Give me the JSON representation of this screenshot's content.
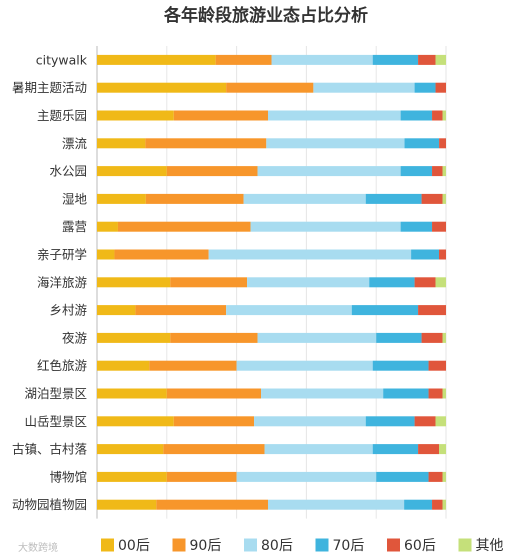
{
  "chart_data": {
    "type": "bar",
    "orientation": "horizontal",
    "stacked": true,
    "normalized": true,
    "title": "各年龄段旅游业态占比分析",
    "categories": [
      "citywalk",
      "暑期主题活动",
      "主题乐园",
      "漂流",
      "水公园",
      "湿地",
      "露营",
      "亲子研学",
      "海洋旅游",
      "乡村游",
      "夜游",
      "红色旅游",
      "湖泊型景区",
      "山岳型景区",
      "古镇、古村落",
      "博物馆",
      "动物园植物园"
    ],
    "series": [
      {
        "name": "00后",
        "color": "#f0b918",
        "values": [
          34,
          37,
          22,
          14,
          20,
          14,
          6,
          5,
          21,
          11,
          21,
          15,
          20,
          22,
          19,
          20,
          17
        ]
      },
      {
        "name": "90后",
        "color": "#f7962b",
        "values": [
          16,
          25,
          27,
          35,
          26,
          28,
          38,
          27,
          22,
          26,
          25,
          25,
          27,
          23,
          29,
          20,
          32
        ]
      },
      {
        "name": "80后",
        "color": "#a8dcf0",
        "values": [
          29,
          29,
          38,
          40,
          41,
          35,
          43,
          58,
          35,
          36,
          34,
          39,
          35,
          32,
          31,
          40,
          39
        ]
      },
      {
        "name": "70后",
        "color": "#3fb4de",
        "values": [
          13,
          6,
          9,
          10,
          9,
          16,
          9,
          8,
          13,
          19,
          13,
          16,
          13,
          14,
          13,
          15,
          8
        ]
      },
      {
        "name": "60后",
        "color": "#e0563b",
        "values": [
          5,
          3,
          3,
          2,
          3,
          6,
          4,
          2,
          6,
          8,
          6,
          5,
          4,
          6,
          6,
          4,
          3
        ]
      },
      {
        "name": "其他",
        "color": "#c5e07a",
        "values": [
          3,
          0,
          1,
          0,
          1,
          1,
          0,
          0,
          3,
          0,
          1,
          0,
          1,
          3,
          2,
          1,
          1
        ]
      }
    ],
    "xlim": [
      0,
      100
    ],
    "grid": true,
    "legend": "bottom"
  },
  "watermark": "大数跨境",
  "colors": {
    "grid": "#e6e6e6",
    "axis": "#bbbbbb",
    "text": "#333333"
  }
}
